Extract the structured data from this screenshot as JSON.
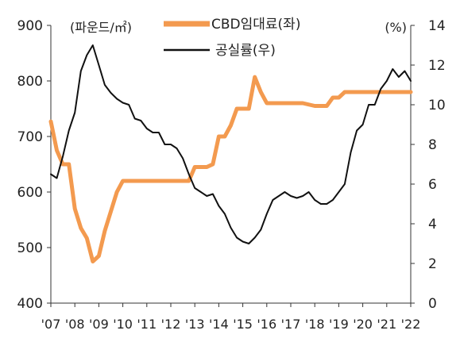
{
  "chart_data": {
    "type": "line",
    "left_unit": "(파운드/㎡)",
    "right_unit": "(%)",
    "x_labels": [
      "'07",
      "'08",
      "'09",
      "'10",
      "'11",
      "'12",
      "'13",
      "'14",
      "'15",
      "'16",
      "'17",
      "'18",
      "'19",
      "'20",
      "'21",
      "'22"
    ],
    "y_left": {
      "ticks": [
        400,
        500,
        600,
        700,
        800,
        900
      ],
      "range": [
        400,
        900
      ]
    },
    "y_right": {
      "ticks": [
        0,
        2,
        4,
        6,
        8,
        10,
        12,
        14
      ],
      "range": [
        0,
        14
      ]
    },
    "legend_position": "top-center",
    "series": [
      {
        "name": "CBD임대료(좌)",
        "axis": "left",
        "color": "#f39a4f",
        "x": [
          2007.0,
          2007.25,
          2007.5,
          2007.75,
          2008.0,
          2008.25,
          2008.5,
          2008.75,
          2009.0,
          2009.25,
          2009.5,
          2009.75,
          2010.0,
          2010.5,
          2011.0,
          2011.5,
          2012.0,
          2012.5,
          2012.75,
          2013.0,
          2013.25,
          2013.5,
          2013.75,
          2014.0,
          2014.25,
          2014.5,
          2014.75,
          2015.0,
          2015.25,
          2015.5,
          2015.75,
          2016.0,
          2016.5,
          2017.0,
          2017.5,
          2018.0,
          2018.5,
          2018.75,
          2019.0,
          2019.25,
          2019.5,
          2020.0,
          2020.5,
          2021.0,
          2021.5,
          2022.0
        ],
        "values": [
          727,
          675,
          650,
          650,
          570,
          535,
          517,
          475,
          485,
          530,
          565,
          600,
          620,
          620,
          620,
          620,
          620,
          620,
          620,
          645,
          645,
          645,
          650,
          700,
          700,
          720,
          750,
          750,
          750,
          807,
          780,
          760,
          760,
          760,
          760,
          755,
          755,
          770,
          770,
          780,
          780,
          780,
          780,
          780,
          780,
          780
        ]
      },
      {
        "name": "공실률(우)",
        "axis": "right",
        "color": "#111111",
        "x": [
          2007.0,
          2007.25,
          2007.5,
          2007.75,
          2008.0,
          2008.25,
          2008.5,
          2008.75,
          2009.0,
          2009.25,
          2009.5,
          2009.75,
          2010.0,
          2010.25,
          2010.5,
          2010.75,
          2011.0,
          2011.25,
          2011.5,
          2011.75,
          2012.0,
          2012.25,
          2012.5,
          2012.75,
          2013.0,
          2013.25,
          2013.5,
          2013.75,
          2014.0,
          2014.25,
          2014.5,
          2014.75,
          2015.0,
          2015.25,
          2015.5,
          2015.75,
          2016.0,
          2016.25,
          2016.5,
          2016.75,
          2017.0,
          2017.25,
          2017.5,
          2017.75,
          2018.0,
          2018.25,
          2018.5,
          2018.75,
          2019.0,
          2019.25,
          2019.5,
          2019.75,
          2020.0,
          2020.25,
          2020.5,
          2020.75,
          2021.0,
          2021.25,
          2021.5,
          2021.75,
          2022.0
        ],
        "values": [
          6.5,
          6.3,
          7.4,
          8.7,
          9.6,
          11.7,
          12.5,
          13.0,
          12.0,
          11.0,
          10.6,
          10.3,
          10.1,
          10.0,
          9.3,
          9.2,
          8.8,
          8.6,
          8.6,
          8.0,
          8.0,
          7.8,
          7.3,
          6.5,
          5.8,
          5.6,
          5.4,
          5.5,
          4.9,
          4.5,
          3.8,
          3.3,
          3.1,
          3.0,
          3.3,
          3.7,
          4.5,
          5.2,
          5.4,
          5.6,
          5.4,
          5.3,
          5.4,
          5.6,
          5.2,
          5.0,
          5.0,
          5.2,
          5.6,
          6.0,
          7.6,
          8.7,
          9.0,
          10.0,
          10.0,
          10.8,
          11.2,
          11.8,
          11.4,
          11.7,
          11.2
        ]
      }
    ]
  }
}
